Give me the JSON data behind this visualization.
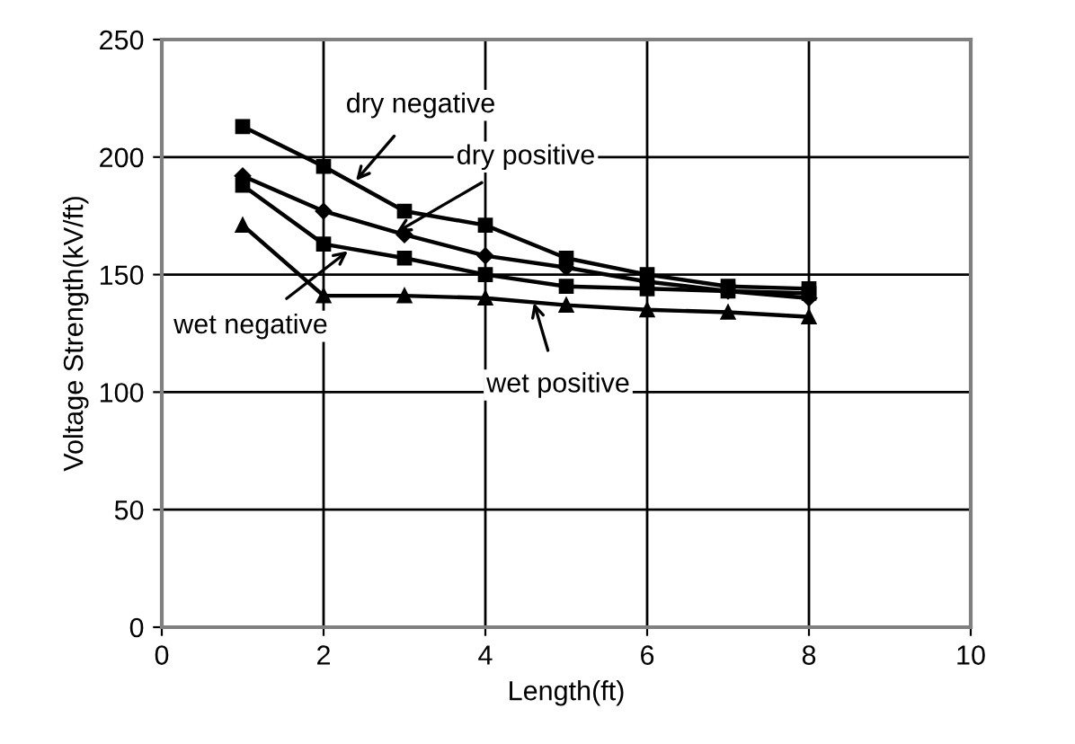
{
  "chart_data": {
    "type": "line",
    "xlabel": "Length(ft)",
    "ylabel": "Voltage Strength(kV/ft)",
    "x": [
      1,
      2,
      3,
      4,
      5,
      6,
      7,
      8
    ],
    "series": [
      {
        "color": "#000000",
        "marker": "square",
        "values": [
          213,
          196,
          177,
          171,
          157,
          150,
          145,
          144
        ]
      },
      {
        "color": "#000000",
        "marker": "diamond",
        "values": [
          192,
          177,
          167,
          158,
          153,
          147,
          143,
          140
        ]
      },
      {
        "color": "#000000",
        "marker": "square",
        "values": [
          188,
          163,
          157,
          150,
          145,
          144,
          143,
          142
        ]
      },
      {
        "color": "#000000",
        "marker": "triangle",
        "values": [
          171,
          141,
          141,
          140,
          137,
          135,
          134,
          132
        ]
      }
    ],
    "annotations": [
      {
        "text": "dry negative",
        "x": 2.4,
        "y": 190
      },
      {
        "text": "dry positive",
        "x": 2.9,
        "y": 168
      },
      {
        "text": "wet negative",
        "x": 2.3,
        "y": 160
      },
      {
        "text": "wet positive",
        "x": 4.6,
        "y": 138
      }
    ],
    "xlim": [
      0,
      10
    ],
    "xticks": [
      0,
      2,
      4,
      6,
      8,
      10
    ],
    "ylim": [
      0,
      250
    ],
    "yticks": [
      0,
      50,
      100,
      150,
      200,
      250
    ],
    "grid": true
  }
}
